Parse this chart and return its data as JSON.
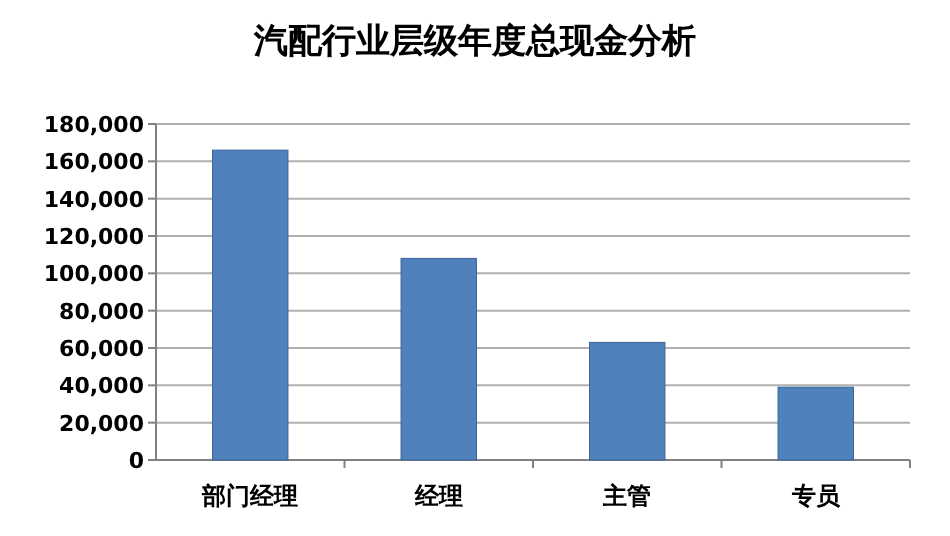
{
  "chart_data": {
    "type": "bar",
    "title": "汽配行业层级年度总现金分析",
    "categories": [
      "部门经理",
      "经理",
      "主管",
      "专员"
    ],
    "values": [
      166000,
      108000,
      63000,
      39000
    ],
    "color": "#4f81bd",
    "ylim": [
      0,
      180000
    ],
    "yticks": [
      {
        "value": 0,
        "label": "0"
      },
      {
        "value": 20000,
        "label": "20,000"
      },
      {
        "value": 40000,
        "label": "40,000"
      },
      {
        "value": 60000,
        "label": "60,000"
      },
      {
        "value": 80000,
        "label": "80,000"
      },
      {
        "value": 100000,
        "label": "100,000"
      },
      {
        "value": 120000,
        "label": "120,000"
      },
      {
        "value": 140000,
        "label": "140,000"
      },
      {
        "value": 160000,
        "label": "160,000"
      },
      {
        "value": 180000,
        "label": "180,000"
      }
    ],
    "grid": "y"
  }
}
